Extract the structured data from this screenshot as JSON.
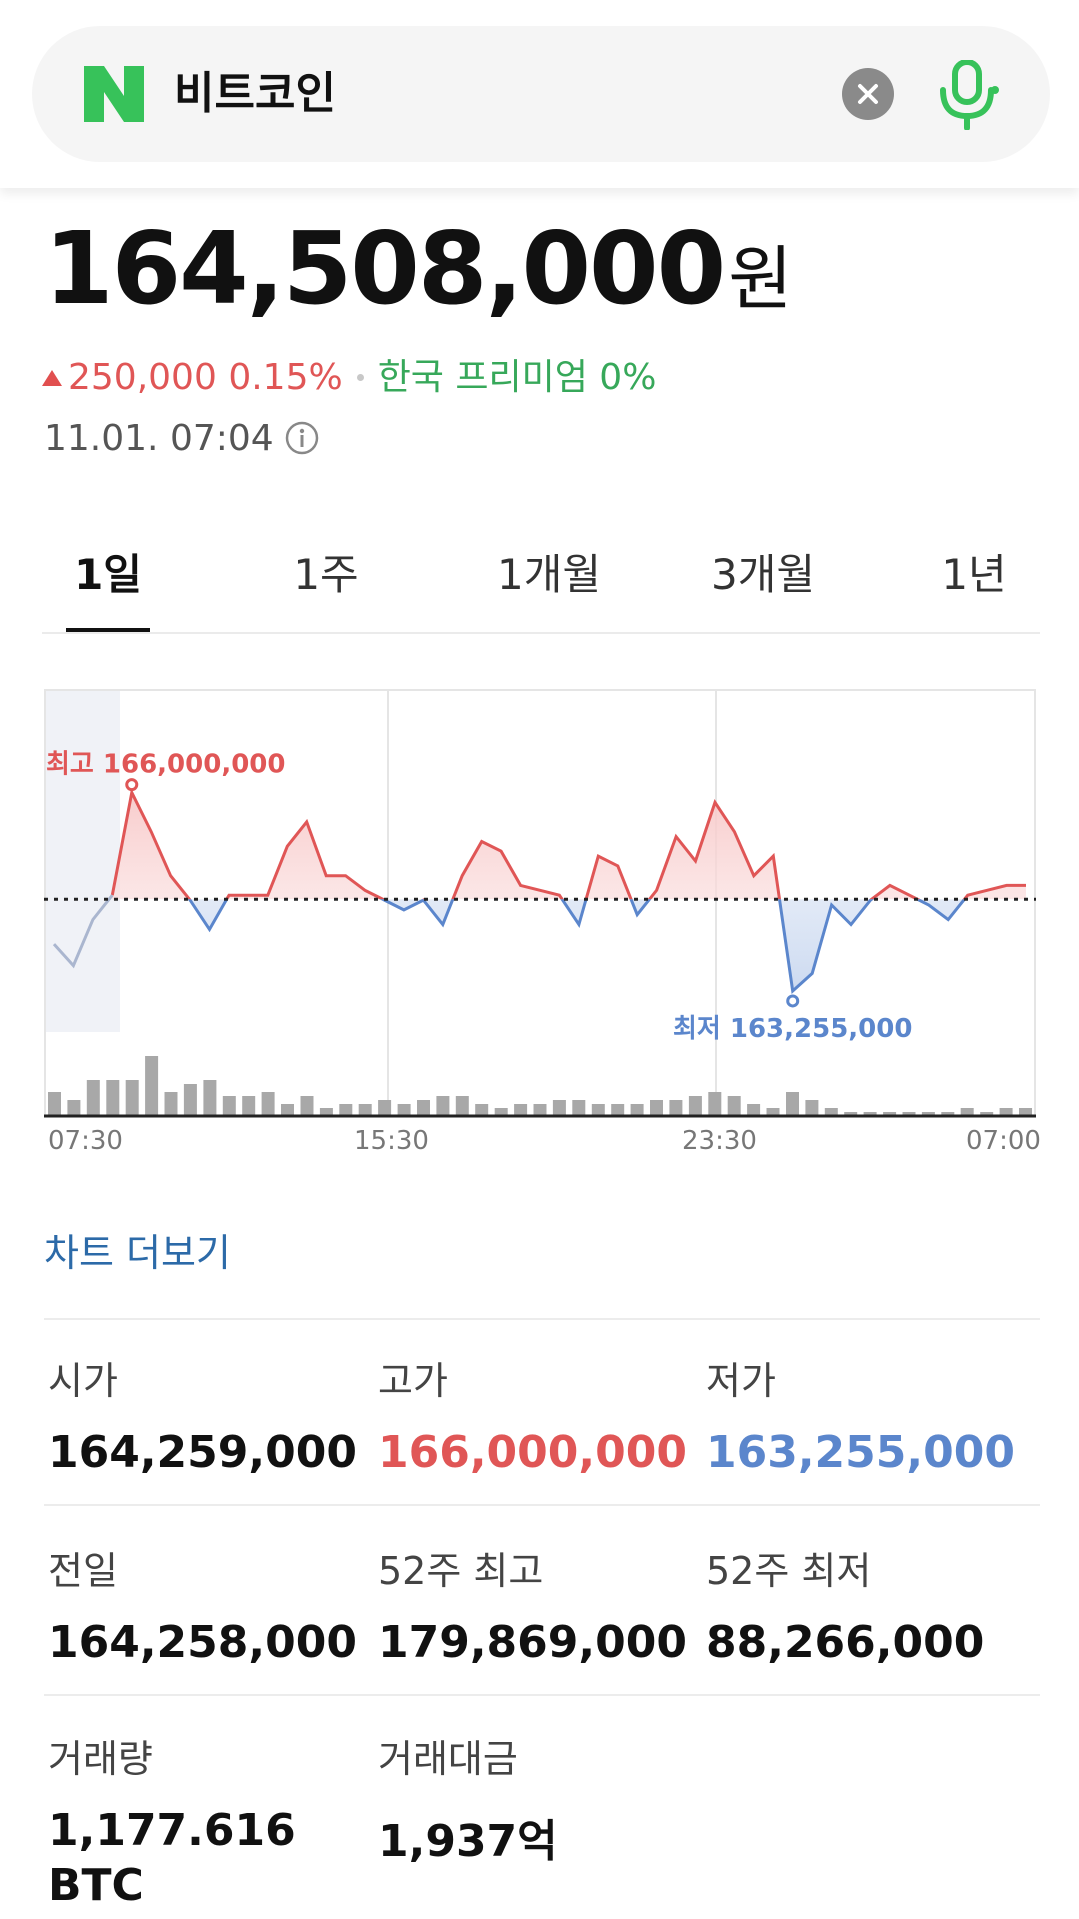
{
  "search": {
    "query": "비트코인"
  },
  "price": {
    "value": "164,508,000",
    "unit": "원",
    "change": "250,000 0.15%",
    "premium": "한국 프리미엄 0%",
    "timestamp": "11.01. 07:04"
  },
  "tabs": [
    {
      "label": "1일",
      "active": true
    },
    {
      "label": "1주"
    },
    {
      "label": "1개월"
    },
    {
      "label": "3개월"
    },
    {
      "label": "1년"
    }
  ],
  "chart_data": {
    "type": "line",
    "x_labels": [
      "07:30",
      "15:30",
      "23:30",
      "07:00"
    ],
    "baseline": 164258000,
    "high_label": "최고 166,000,000",
    "low_label": "최저 163,255,000",
    "high": 166000000,
    "low": 163255000,
    "ylim": [
      162900000,
      166400000
    ],
    "prices": [
      163800000,
      163580000,
      164050000,
      164300000,
      165350000,
      164950000,
      164500000,
      164250000,
      163950000,
      164300000,
      164300000,
      164300000,
      164800000,
      165050000,
      164500000,
      164500000,
      164350000,
      164250000,
      164150000,
      164250000,
      164000000,
      164500000,
      164850000,
      164750000,
      164400000,
      164350000,
      164300000,
      164000000,
      164700000,
      164600000,
      164100000,
      164350000,
      164900000,
      164650000,
      165250000,
      164950000,
      164500000,
      164700000,
      163320000,
      163500000,
      164200000,
      164000000,
      164250000,
      164400000,
      164300000,
      164200000,
      164050000,
      164300000,
      164350000,
      164400000,
      164400000
    ],
    "volume": [
      6,
      4,
      9,
      9,
      9,
      15,
      6,
      8,
      9,
      5,
      5,
      6,
      3,
      5,
      2,
      3,
      3,
      4,
      3,
      4,
      5,
      5,
      3,
      2,
      3,
      3,
      4,
      4,
      3,
      3,
      3,
      4,
      4,
      5,
      6,
      5,
      3,
      2,
      6,
      4,
      2,
      1,
      1,
      1,
      1,
      1,
      1,
      2,
      1,
      2,
      2
    ],
    "grid": true
  },
  "more_link": "차트 더보기",
  "stats": [
    {
      "label": "시가",
      "value": "164,259,000",
      "tone": "normal"
    },
    {
      "label": "고가",
      "value": "166,000,000",
      "tone": "red"
    },
    {
      "label": "저가",
      "value": "163,255,000",
      "tone": "blue"
    },
    {
      "label": "전일",
      "value": "164,258,000",
      "tone": "normal"
    },
    {
      "label": "52주 최고",
      "value": "179,869,000",
      "tone": "normal"
    },
    {
      "label": "52주 최저",
      "value": "88,266,000",
      "tone": "normal"
    },
    {
      "label": "거래량",
      "value": "1,177.616",
      "value2": "BTC",
      "tone": "normal"
    },
    {
      "label": "거래대금",
      "value": "1,937억",
      "tone": "normal"
    }
  ],
  "colors": {
    "up": "#e05656",
    "down": "#5b86cc",
    "brand": "#37c25a"
  }
}
